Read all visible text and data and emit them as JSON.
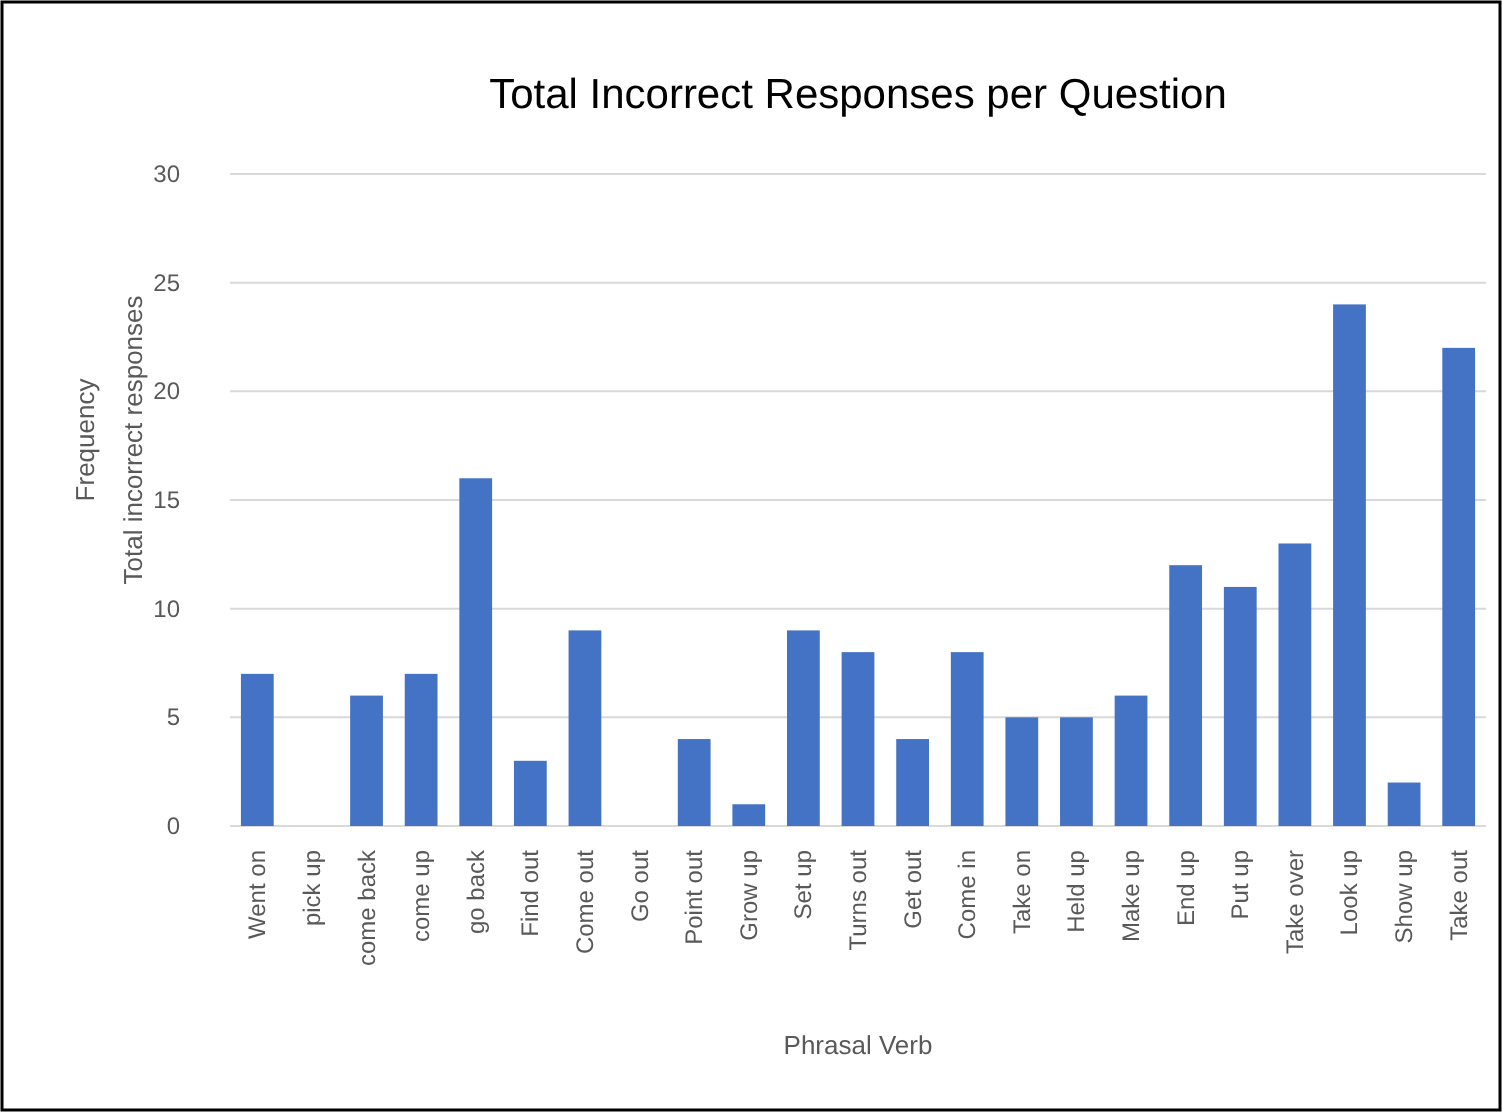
{
  "chart_data": {
    "type": "bar",
    "title": "Total Incorrect Responses per Question",
    "xlabel": "Phrasal Verb",
    "ylabel": "Frequency\nTotal incorrect responses",
    "categories": [
      "Went on",
      "pick up",
      "come back",
      "come up",
      "go back",
      "Find out",
      "Come out",
      "Go out",
      "Point out",
      "Grow up",
      "Set up",
      "Turns out",
      "Get out",
      "Come in",
      "Take on",
      "Held up",
      "Make up",
      "End up",
      "Put up",
      "Take over",
      "Look up",
      "Show up",
      "Take out"
    ],
    "values": [
      7,
      0,
      6,
      7,
      16,
      3,
      9,
      0,
      4,
      1,
      9,
      8,
      4,
      8,
      5,
      5,
      6,
      12,
      11,
      13,
      24,
      2,
      22
    ],
    "color": "#4472c4",
    "ylim": [
      0,
      30
    ],
    "yticks": [
      0,
      5,
      10,
      15,
      20,
      25,
      30
    ],
    "grid": "y"
  }
}
